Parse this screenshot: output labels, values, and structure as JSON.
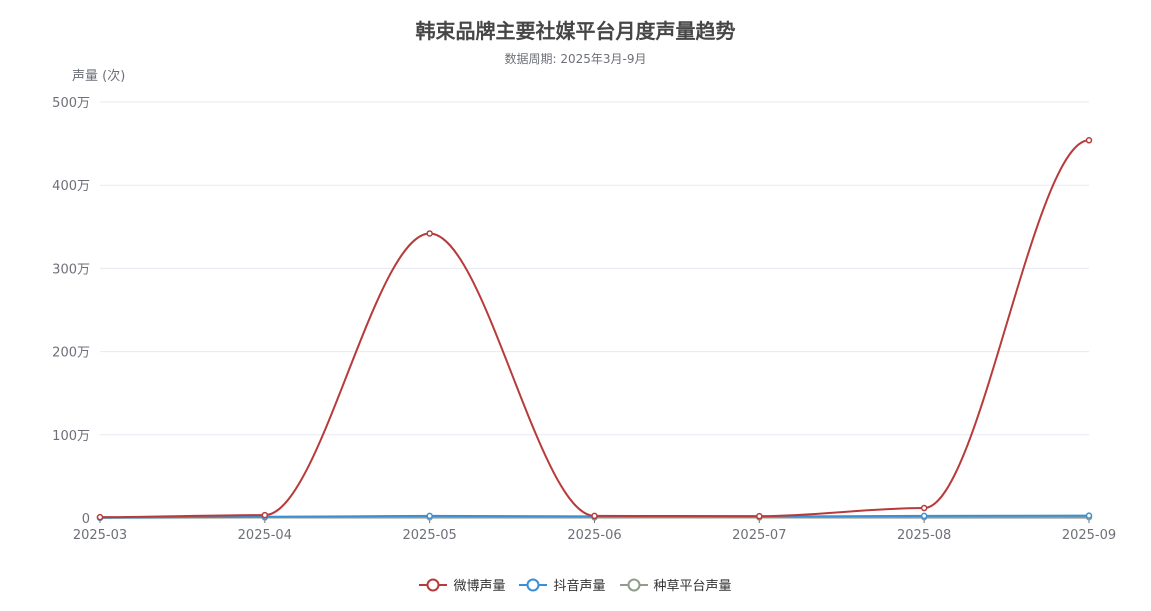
{
  "chart_data": {
    "type": "line",
    "title": "韩束品牌主要社媒平台月度声量趋势",
    "subtitle": "数据周期: 2025年3月-9月",
    "ylabel": "声量 (次)",
    "xlabel": "",
    "categories": [
      "2025-03",
      "2025-04",
      "2025-05",
      "2025-06",
      "2025-07",
      "2025-08",
      "2025-09"
    ],
    "ylim": [
      0,
      5000000
    ],
    "yticks": [
      0,
      1000000,
      2000000,
      3000000,
      4000000,
      5000000
    ],
    "ytick_labels": [
      "0",
      "100万",
      "200万",
      "300万",
      "400万",
      "500万"
    ],
    "grid": true,
    "smooth": true,
    "legend_position": "bottom",
    "series": [
      {
        "name": "微博声量",
        "color": "#b83b3b",
        "values": [
          10000,
          35000,
          3420000,
          25000,
          22000,
          120000,
          4540000
        ]
      },
      {
        "name": "抖音声量",
        "color": "#3a8fd6",
        "values": [
          5000,
          15000,
          25000,
          20000,
          18000,
          25000,
          28000
        ]
      },
      {
        "name": "种草平台声量",
        "color": "#8f9d8a",
        "values": [
          2000,
          6000,
          8000,
          7000,
          6000,
          9000,
          10000
        ]
      }
    ]
  }
}
